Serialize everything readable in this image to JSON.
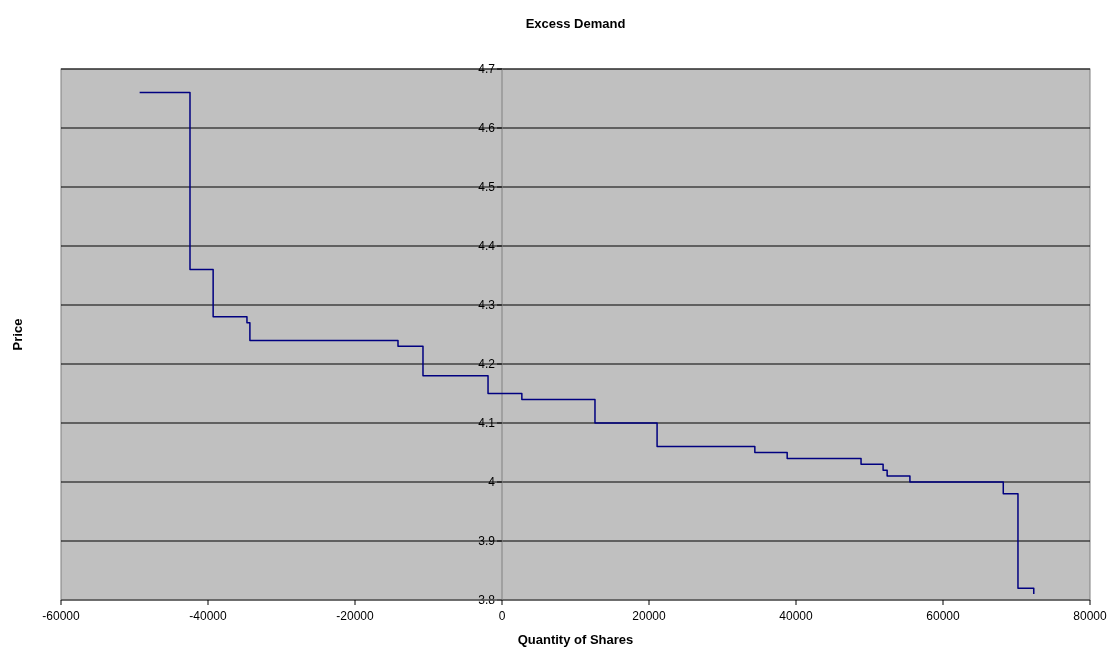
{
  "chart_data": {
    "type": "step",
    "title": "Excess Demand",
    "xlabel": "Quantity of Shares",
    "ylabel": "Price",
    "x": [
      -49300,
      -42450,
      -39300,
      -34700,
      -34300,
      -14150,
      -10750,
      -1900,
      2700,
      12650,
      21100,
      34400,
      38800,
      48850,
      51850,
      52400,
      55500,
      68200,
      70200,
      72350
    ],
    "series": [
      {
        "color": "#000080",
        "values": [
          4.66,
          4.36,
          4.28,
          4.27,
          4.24,
          4.23,
          4.18,
          4.15,
          4.14,
          4.1,
          4.06,
          4.05,
          4.04,
          4.03,
          4.02,
          4.01,
          4.0,
          3.98,
          3.82,
          3.81
        ]
      }
    ],
    "xlim": [
      -60000,
      80000
    ],
    "xticks": [
      -60000,
      -40000,
      -20000,
      0,
      20000,
      40000,
      60000,
      80000
    ],
    "ylim": [
      3.8,
      4.7
    ],
    "yticks": [
      3.8,
      3.9,
      4,
      4.1,
      4.2,
      4.3,
      4.4,
      4.5,
      4.6,
      4.7
    ],
    "grid": "y",
    "marker": "none",
    "line_style": "solid"
  }
}
